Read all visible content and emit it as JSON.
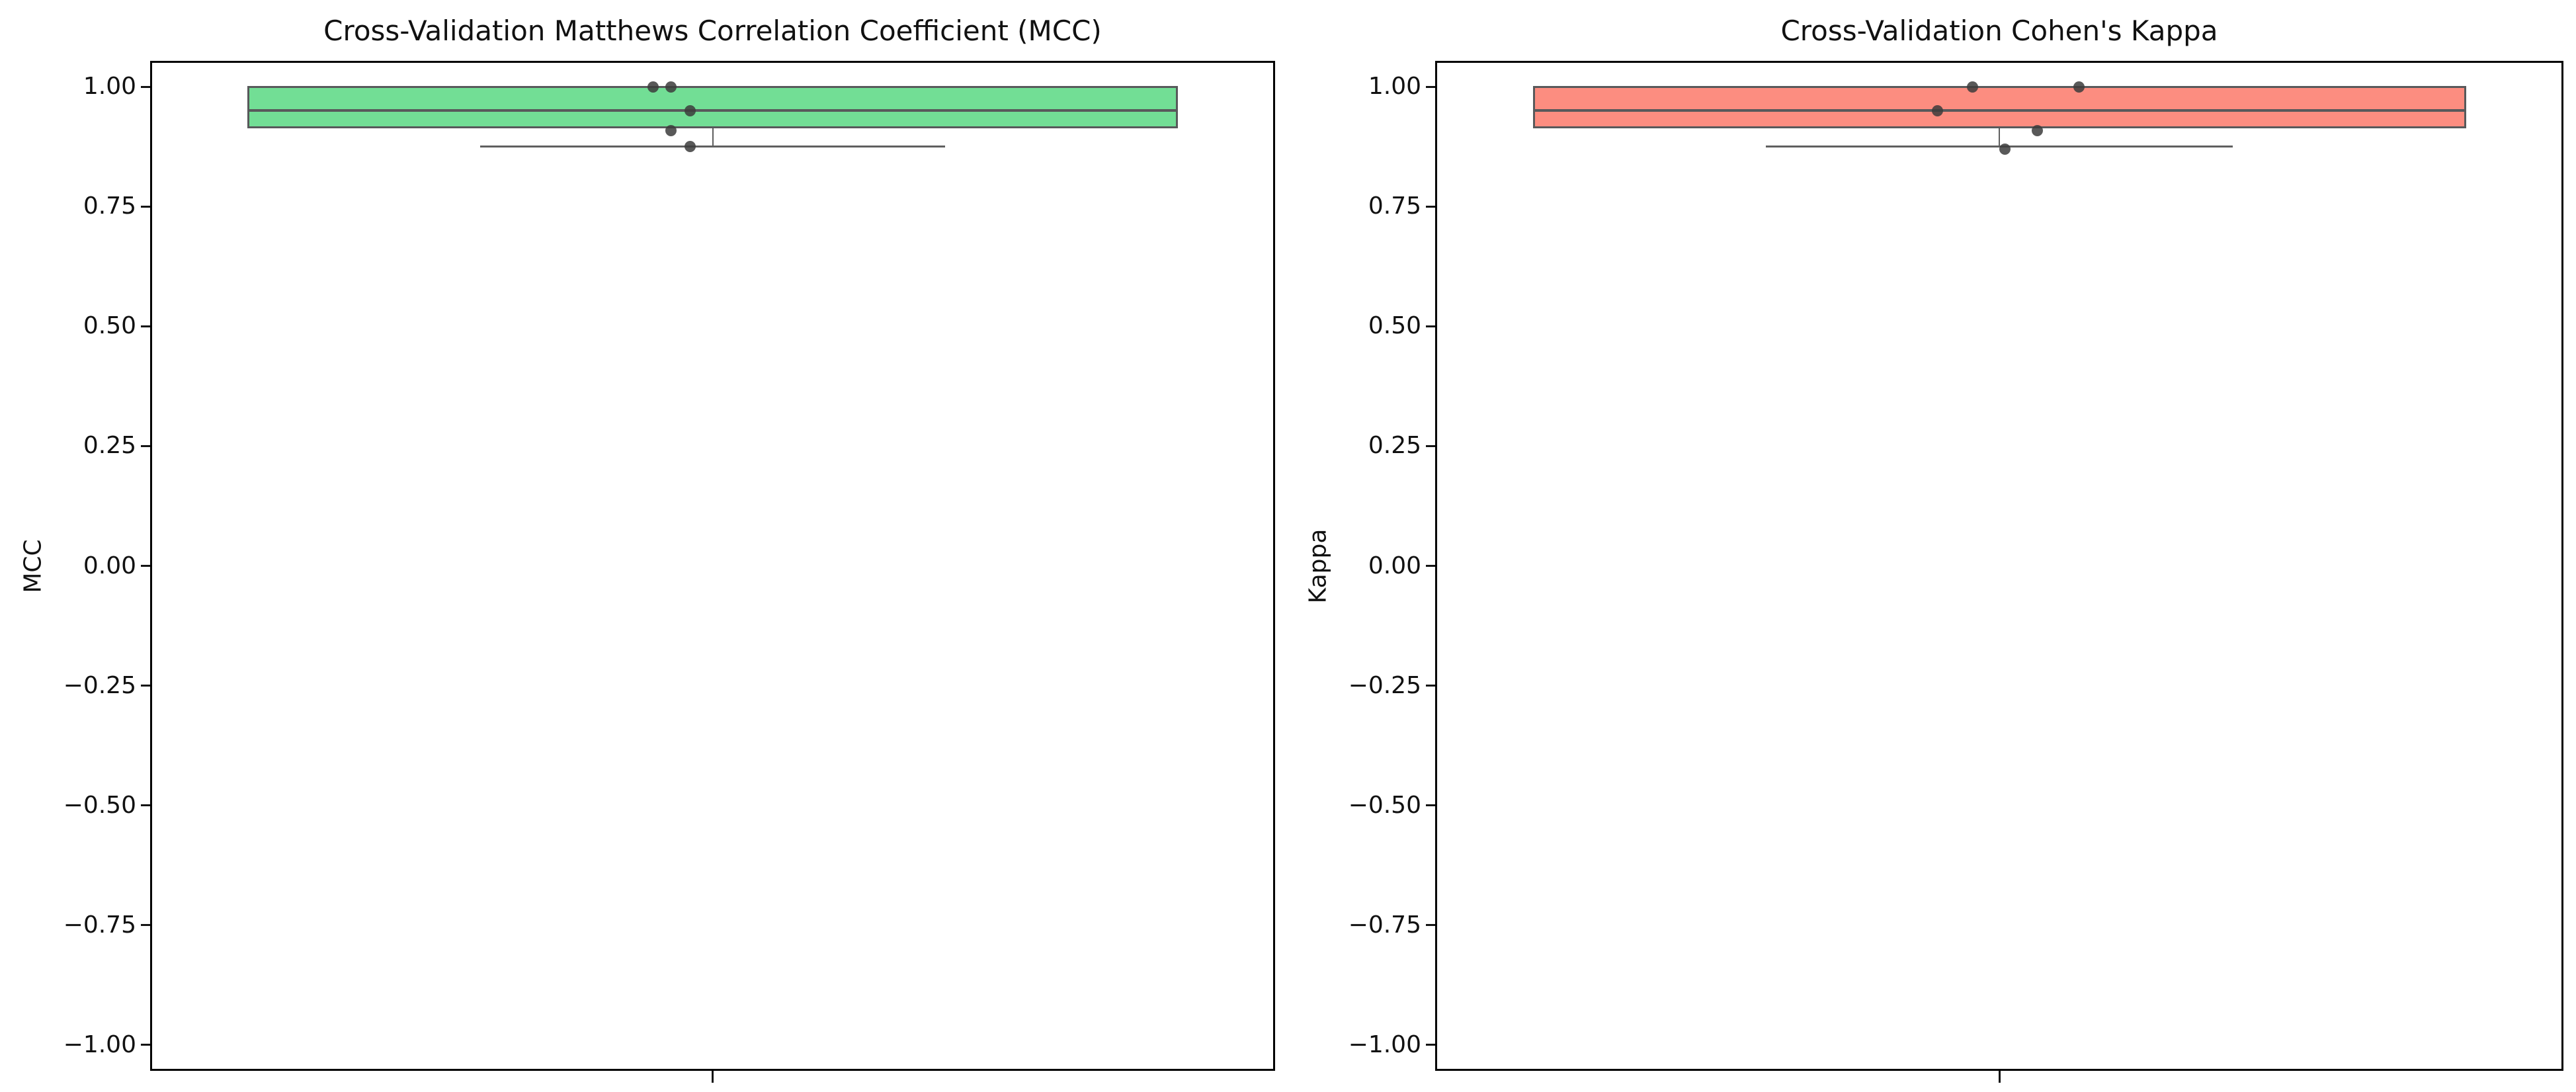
{
  "figure": {
    "background": "#ffffff",
    "spine_color": "#000000",
    "tick_color": "#141414",
    "text_color": "#111111"
  },
  "chart_data": [
    {
      "type": "box",
      "title": "Cross-Validation Matthews Correlation Coefficient (MCC)",
      "ylabel": "MCC",
      "xlabel": "",
      "ylim": [
        -1.05,
        1.05
      ],
      "grid": false,
      "legend": "none",
      "yticks": [
        1.0,
        0.75,
        0.5,
        0.25,
        0.0,
        -0.25,
        -0.5,
        -0.75,
        -1.0
      ],
      "ytick_labels": [
        "1.00",
        "0.75",
        "0.50",
        "0.25",
        "0.00",
        "−0.25",
        "−0.50",
        "−0.75",
        "−1.00"
      ],
      "values": [
        1.0,
        1.0,
        0.95,
        0.91,
        0.875
      ],
      "box_stats": {
        "whisker_low": 0.875,
        "q1": 0.915,
        "median": 0.95,
        "q3": 1.0,
        "whisker_high": 1.0
      },
      "points": [
        {
          "fx": 0.447,
          "v": 1.0
        },
        {
          "fx": 0.463,
          "v": 1.0
        },
        {
          "fx": 0.48,
          "v": 0.95
        },
        {
          "fx": 0.463,
          "v": 0.908
        },
        {
          "fx": 0.48,
          "v": 0.876
        }
      ],
      "fill_color": "#72de95",
      "edge_color": "#58595b",
      "whisker_color": "#5f5f5f",
      "point_color": "#3c3c3c"
    },
    {
      "type": "box",
      "title": "Cross-Validation Cohen's Kappa",
      "ylabel": "Kappa",
      "xlabel": "",
      "ylim": [
        -1.05,
        1.05
      ],
      "grid": false,
      "legend": "none",
      "yticks": [
        1.0,
        0.75,
        0.5,
        0.25,
        0.0,
        -0.25,
        -0.5,
        -0.75,
        -1.0
      ],
      "ytick_labels": [
        "1.00",
        "0.75",
        "0.50",
        "0.25",
        "0.00",
        "−0.25",
        "−0.50",
        "−0.75",
        "−1.00"
      ],
      "values": [
        1.0,
        1.0,
        0.95,
        0.91,
        0.875
      ],
      "box_stats": {
        "whisker_low": 0.875,
        "q1": 0.915,
        "median": 0.95,
        "q3": 1.0,
        "whisker_high": 1.0
      },
      "points": [
        {
          "fx": 0.476,
          "v": 1.0
        },
        {
          "fx": 0.571,
          "v": 1.0
        },
        {
          "fx": 0.445,
          "v": 0.95
        },
        {
          "fx": 0.534,
          "v": 0.908
        },
        {
          "fx": 0.505,
          "v": 0.87
        }
      ],
      "fill_color": "#fc8d80",
      "edge_color": "#58595b",
      "whisker_color": "#5f5f5f",
      "point_color": "#3c3c3c"
    }
  ]
}
